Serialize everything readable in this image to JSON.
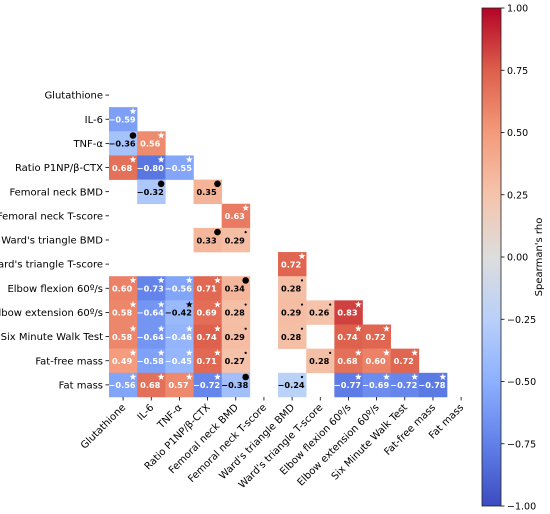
{
  "chart_data": {
    "type": "heatmap",
    "title": "",
    "variables": [
      "Glutathione",
      "IL-6",
      "TNF-α",
      "Ratio P1NP/β-CTX",
      "Femoral neck BMD",
      "Femoral neck T-score",
      "Ward's triangle BMD",
      "Ward's triangle T-score",
      "Elbow flexion 60º/s",
      "Elbow extension 60º/s",
      "Six Minute Walk Test",
      "Fat-free mass",
      "Fat mass"
    ],
    "colorbar": {
      "label": "Spearman's rho",
      "range": [
        -1.0,
        1.0
      ],
      "colormap": "coolwarm",
      "ticks": [
        "1.00",
        "0.75",
        "0.50",
        "0.25",
        "0.00",
        "−0.25",
        "−0.50",
        "−0.75",
        "−1.00"
      ]
    },
    "marker_legend": "star = strong significance, dot = weaker significance (as drawn)",
    "cells": [
      {
        "row": 1,
        "col": 0,
        "value": "−0.59",
        "rho": -0.59,
        "mark": "star"
      },
      {
        "row": 2,
        "col": 0,
        "value": "−0.36",
        "rho": -0.36,
        "mark": "dot"
      },
      {
        "row": 2,
        "col": 1,
        "value": "0.56",
        "rho": 0.56,
        "mark": "star"
      },
      {
        "row": 3,
        "col": 0,
        "value": "0.68",
        "rho": 0.68,
        "mark": "star"
      },
      {
        "row": 3,
        "col": 1,
        "value": "−0.80",
        "rho": -0.8,
        "mark": "star"
      },
      {
        "row": 3,
        "col": 2,
        "value": "−0.55",
        "rho": -0.55,
        "mark": "star"
      },
      {
        "row": 4,
        "col": 1,
        "value": "−0.32",
        "rho": -0.32,
        "mark": "dot"
      },
      {
        "row": 4,
        "col": 3,
        "value": "0.35",
        "rho": 0.35,
        "mark": "dot"
      },
      {
        "row": 5,
        "col": 4,
        "value": "0.63",
        "rho": 0.63,
        "mark": "star"
      },
      {
        "row": 6,
        "col": 3,
        "value": "0.33",
        "rho": 0.33,
        "mark": "dot"
      },
      {
        "row": 6,
        "col": 4,
        "value": "0.29",
        "rho": 0.29,
        "mark": "small-dot"
      },
      {
        "row": 7,
        "col": 6,
        "value": "0.72",
        "rho": 0.72,
        "mark": "star"
      },
      {
        "row": 8,
        "col": 0,
        "value": "0.60",
        "rho": 0.6,
        "mark": "star"
      },
      {
        "row": 8,
        "col": 1,
        "value": "−0.73",
        "rho": -0.73,
        "mark": "star"
      },
      {
        "row": 8,
        "col": 2,
        "value": "−0.56",
        "rho": -0.56,
        "mark": "star"
      },
      {
        "row": 8,
        "col": 3,
        "value": "0.71",
        "rho": 0.71,
        "mark": "star"
      },
      {
        "row": 8,
        "col": 4,
        "value": "0.34",
        "rho": 0.34,
        "mark": "dot"
      },
      {
        "row": 8,
        "col": 6,
        "value": "0.28",
        "rho": 0.28,
        "mark": "small-dot"
      },
      {
        "row": 9,
        "col": 0,
        "value": "0.58",
        "rho": 0.58,
        "mark": "star"
      },
      {
        "row": 9,
        "col": 1,
        "value": "−0.64",
        "rho": -0.64,
        "mark": "star"
      },
      {
        "row": 9,
        "col": 2,
        "value": "−0.42",
        "rho": -0.42,
        "mark": "star"
      },
      {
        "row": 9,
        "col": 3,
        "value": "0.69",
        "rho": 0.69,
        "mark": "star"
      },
      {
        "row": 9,
        "col": 4,
        "value": "0.28",
        "rho": 0.28,
        "mark": "small-dot"
      },
      {
        "row": 9,
        "col": 6,
        "value": "0.29",
        "rho": 0.29,
        "mark": "small-dot"
      },
      {
        "row": 9,
        "col": 7,
        "value": "0.26",
        "rho": 0.26,
        "mark": "small-dot"
      },
      {
        "row": 9,
        "col": 8,
        "value": "0.83",
        "rho": 0.83,
        "mark": "star"
      },
      {
        "row": 10,
        "col": 0,
        "value": "0.58",
        "rho": 0.58,
        "mark": "star"
      },
      {
        "row": 10,
        "col": 1,
        "value": "−0.64",
        "rho": -0.64,
        "mark": "star"
      },
      {
        "row": 10,
        "col": 2,
        "value": "−0.46",
        "rho": -0.46,
        "mark": "star"
      },
      {
        "row": 10,
        "col": 3,
        "value": "0.74",
        "rho": 0.74,
        "mark": "star"
      },
      {
        "row": 10,
        "col": 4,
        "value": "0.29",
        "rho": 0.29,
        "mark": "small-dot"
      },
      {
        "row": 10,
        "col": 6,
        "value": "0.28",
        "rho": 0.28,
        "mark": "small-dot"
      },
      {
        "row": 10,
        "col": 8,
        "value": "0.74",
        "rho": 0.74,
        "mark": "star"
      },
      {
        "row": 10,
        "col": 9,
        "value": "0.72",
        "rho": 0.72,
        "mark": "star"
      },
      {
        "row": 11,
        "col": 0,
        "value": "0.49",
        "rho": 0.49,
        "mark": "star"
      },
      {
        "row": 11,
        "col": 1,
        "value": "−0.58",
        "rho": -0.58,
        "mark": "star"
      },
      {
        "row": 11,
        "col": 2,
        "value": "−0.45",
        "rho": -0.45,
        "mark": "star"
      },
      {
        "row": 11,
        "col": 3,
        "value": "0.71",
        "rho": 0.71,
        "mark": "star"
      },
      {
        "row": 11,
        "col": 4,
        "value": "0.27",
        "rho": 0.27,
        "mark": "small-dot"
      },
      {
        "row": 11,
        "col": 7,
        "value": "0.28",
        "rho": 0.28,
        "mark": "small-dot"
      },
      {
        "row": 11,
        "col": 8,
        "value": "0.68",
        "rho": 0.68,
        "mark": "star"
      },
      {
        "row": 11,
        "col": 9,
        "value": "0.60",
        "rho": 0.6,
        "mark": "star"
      },
      {
        "row": 11,
        "col": 10,
        "value": "0.72",
        "rho": 0.72,
        "mark": "star"
      },
      {
        "row": 12,
        "col": 0,
        "value": "−0.56",
        "rho": -0.56,
        "mark": "star"
      },
      {
        "row": 12,
        "col": 1,
        "value": "0.68",
        "rho": 0.68,
        "mark": "star"
      },
      {
        "row": 12,
        "col": 2,
        "value": "0.57",
        "rho": 0.57,
        "mark": "star"
      },
      {
        "row": 12,
        "col": 3,
        "value": "−0.72",
        "rho": -0.72,
        "mark": "star"
      },
      {
        "row": 12,
        "col": 4,
        "value": "−0.38",
        "rho": -0.38,
        "mark": "dot"
      },
      {
        "row": 12,
        "col": 6,
        "value": "−0.24",
        "rho": -0.24,
        "mark": "small-dot"
      },
      {
        "row": 12,
        "col": 8,
        "value": "−0.77",
        "rho": -0.77,
        "mark": "star"
      },
      {
        "row": 12,
        "col": 9,
        "value": "−0.69",
        "rho": -0.69,
        "mark": "star"
      },
      {
        "row": 12,
        "col": 10,
        "value": "−0.72",
        "rho": -0.72,
        "mark": "star"
      },
      {
        "row": 12,
        "col": 11,
        "value": "−0.78",
        "rho": -0.78,
        "mark": "star"
      }
    ]
  }
}
